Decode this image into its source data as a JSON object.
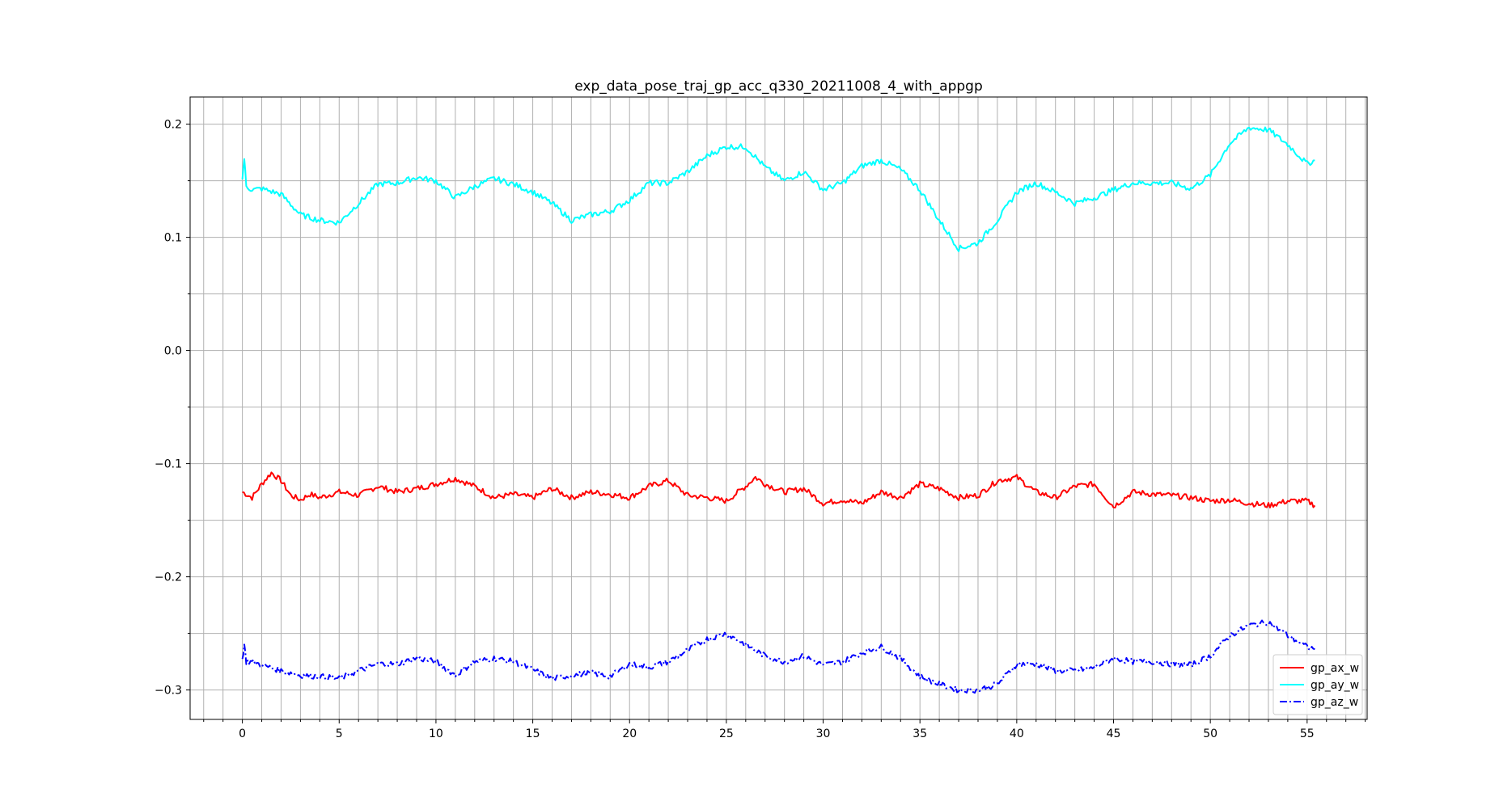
{
  "chart_data": {
    "type": "line",
    "title": "exp_data_pose_traj_gp_acc_q330_20211008_4_with_appgp",
    "xlabel": "",
    "ylabel": "",
    "xlim": [
      -2.7,
      58.1
    ],
    "ylim": [
      -0.326,
      0.224
    ],
    "xticks_major": [
      0,
      5,
      10,
      15,
      20,
      25,
      30,
      35,
      40,
      45,
      50,
      55
    ],
    "xticks_minor_step": 1,
    "yticks_major": [
      -0.3,
      -0.2,
      -0.1,
      0.0,
      0.1,
      0.2
    ],
    "yticks_minor_step": 0.05,
    "xtick_labels": [
      "0",
      "5",
      "10",
      "15",
      "20",
      "25",
      "30",
      "35",
      "40",
      "45",
      "50",
      "55"
    ],
    "ytick_labels": [
      "−0.3",
      "−0.2",
      "−0.1",
      "0.0",
      "0.1",
      "0.2"
    ],
    "grid": true,
    "legend_position": "lower-right",
    "series": [
      {
        "name": "gp_ax_w",
        "color": "#ff0000",
        "line_style": "solid",
        "x": [
          0,
          0.5,
          1.0,
          1.5,
          2.0,
          2.5,
          3.0,
          3.5,
          4.0,
          5.0,
          6.0,
          7.0,
          8.0,
          9.0,
          10.0,
          11.0,
          12.0,
          13.0,
          14.0,
          15.0,
          16.0,
          17.0,
          18.0,
          19.0,
          20.0,
          21.0,
          22.0,
          23.0,
          24.0,
          25.0,
          26.0,
          26.5,
          27.0,
          28.0,
          29.0,
          30.0,
          31.0,
          32.0,
          33.0,
          34.0,
          35.0,
          36.0,
          37.0,
          38.0,
          39.0,
          40.0,
          41.0,
          42.0,
          43.0,
          44.0,
          45.0,
          46.0,
          47.0,
          48.0,
          49.0,
          50.0,
          51.0,
          52.0,
          53.0,
          54.0,
          55.0,
          55.4
        ],
        "y": [
          -0.125,
          -0.13,
          -0.118,
          -0.108,
          -0.115,
          -0.128,
          -0.132,
          -0.127,
          -0.13,
          -0.125,
          -0.128,
          -0.12,
          -0.125,
          -0.122,
          -0.118,
          -0.113,
          -0.12,
          -0.13,
          -0.127,
          -0.13,
          -0.122,
          -0.13,
          -0.125,
          -0.127,
          -0.13,
          -0.12,
          -0.115,
          -0.128,
          -0.13,
          -0.133,
          -0.12,
          -0.112,
          -0.118,
          -0.125,
          -0.122,
          -0.135,
          -0.132,
          -0.135,
          -0.125,
          -0.13,
          -0.118,
          -0.122,
          -0.13,
          -0.128,
          -0.115,
          -0.112,
          -0.125,
          -0.13,
          -0.12,
          -0.118,
          -0.138,
          -0.125,
          -0.127,
          -0.128,
          -0.13,
          -0.133,
          -0.132,
          -0.135,
          -0.137,
          -0.133,
          -0.133,
          -0.137
        ]
      },
      {
        "name": "gp_ay_w",
        "color": "#00ffff",
        "line_style": "solid",
        "x": [
          0,
          0.1,
          0.2,
          0.5,
          1.0,
          2.0,
          3.0,
          4.0,
          5.0,
          6.0,
          7.0,
          8.0,
          9.0,
          10.0,
          11.0,
          12.0,
          13.0,
          14.0,
          15.0,
          16.0,
          17.0,
          18.0,
          19.0,
          20.0,
          21.0,
          22.0,
          23.0,
          24.0,
          25.0,
          26.0,
          27.0,
          28.0,
          29.0,
          30.0,
          31.0,
          32.0,
          33.0,
          34.0,
          35.0,
          36.0,
          37.0,
          38.0,
          39.0,
          40.0,
          41.0,
          42.0,
          43.0,
          44.0,
          45.0,
          46.0,
          47.0,
          48.0,
          49.0,
          50.0,
          51.0,
          52.0,
          53.0,
          54.0,
          55.0,
          55.4
        ],
        "y": [
          0.152,
          0.17,
          0.145,
          0.142,
          0.143,
          0.138,
          0.12,
          0.115,
          0.113,
          0.13,
          0.147,
          0.148,
          0.153,
          0.15,
          0.135,
          0.145,
          0.152,
          0.147,
          0.14,
          0.13,
          0.115,
          0.12,
          0.123,
          0.133,
          0.148,
          0.148,
          0.158,
          0.172,
          0.18,
          0.18,
          0.162,
          0.15,
          0.158,
          0.142,
          0.148,
          0.163,
          0.168,
          0.16,
          0.142,
          0.115,
          0.09,
          0.095,
          0.115,
          0.14,
          0.148,
          0.14,
          0.13,
          0.135,
          0.142,
          0.148,
          0.148,
          0.148,
          0.143,
          0.155,
          0.183,
          0.197,
          0.195,
          0.182,
          0.165,
          0.168
        ]
      },
      {
        "name": "gp_az_w",
        "color": "#0000ff",
        "line_style": "dashdot",
        "x": [
          0,
          0.1,
          0.2,
          0.5,
          1.0,
          2.0,
          3.0,
          4.0,
          5.0,
          6.0,
          7.0,
          8.0,
          9.0,
          10.0,
          11.0,
          12.0,
          13.0,
          14.0,
          15.0,
          16.0,
          17.0,
          18.0,
          19.0,
          20.0,
          21.0,
          22.0,
          23.0,
          24.0,
          25.0,
          26.0,
          27.0,
          28.0,
          29.0,
          30.0,
          31.0,
          32.0,
          33.0,
          34.0,
          35.0,
          36.0,
          37.0,
          38.0,
          39.0,
          40.0,
          41.0,
          42.0,
          43.0,
          44.0,
          45.0,
          46.0,
          47.0,
          48.0,
          49.0,
          50.0,
          51.0,
          52.0,
          53.0,
          54.0,
          55.0,
          55.4
        ],
        "y": [
          -0.273,
          -0.26,
          -0.275,
          -0.275,
          -0.278,
          -0.283,
          -0.287,
          -0.288,
          -0.29,
          -0.283,
          -0.277,
          -0.277,
          -0.272,
          -0.275,
          -0.287,
          -0.275,
          -0.272,
          -0.275,
          -0.282,
          -0.29,
          -0.287,
          -0.285,
          -0.288,
          -0.277,
          -0.28,
          -0.275,
          -0.265,
          -0.255,
          -0.25,
          -0.26,
          -0.27,
          -0.275,
          -0.27,
          -0.278,
          -0.275,
          -0.267,
          -0.262,
          -0.272,
          -0.288,
          -0.295,
          -0.3,
          -0.3,
          -0.295,
          -0.277,
          -0.277,
          -0.283,
          -0.283,
          -0.28,
          -0.272,
          -0.275,
          -0.275,
          -0.277,
          -0.278,
          -0.27,
          -0.252,
          -0.243,
          -0.24,
          -0.252,
          -0.262,
          -0.264
        ]
      }
    ]
  }
}
